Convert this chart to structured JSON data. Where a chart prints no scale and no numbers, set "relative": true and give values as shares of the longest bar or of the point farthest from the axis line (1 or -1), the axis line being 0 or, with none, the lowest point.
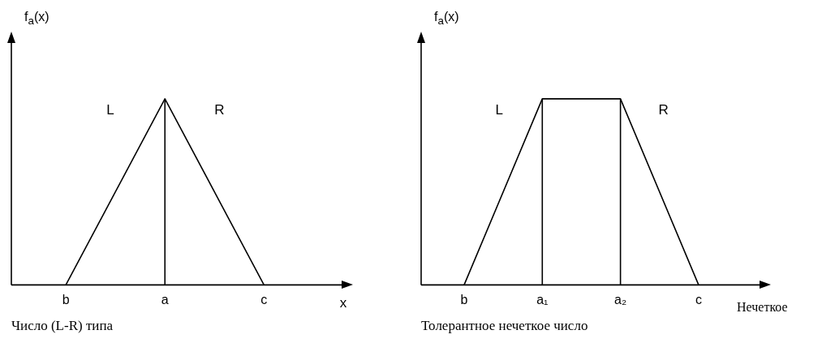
{
  "chart_data": [
    {
      "type": "line",
      "title": "Число (L-R) типа",
      "xlabel": "x",
      "ylabel": "f$_{a}$(x)",
      "categories": [
        "b",
        "a",
        "c"
      ],
      "relative": true,
      "series": [
        {
          "color": "#000000",
          "values": [
            0,
            1,
            0
          ]
        }
      ],
      "ref_lines": [
        {
          "axis": "x",
          "value": "a"
        }
      ],
      "annotations": [
        "L",
        "R"
      ],
      "grid": false,
      "legend": false,
      "tick_labels": "x"
    },
    {
      "type": "line",
      "title": "Толерантное нечеткое число",
      "xlabel": "Нечеткое",
      "ylabel": "f$_{a}$(x)",
      "categories": [
        "b",
        "a₁",
        "a₂",
        "c"
      ],
      "relative": true,
      "series": [
        {
          "color": "#000000",
          "values": [
            0,
            1,
            1,
            0
          ]
        }
      ],
      "ref_lines": [
        {
          "axis": "x",
          "value": "a₁"
        },
        {
          "axis": "x",
          "value": "a₂"
        }
      ],
      "annotations": [
        "L",
        "R"
      ],
      "grid": false,
      "legend": false,
      "tick_labels": "x"
    }
  ]
}
